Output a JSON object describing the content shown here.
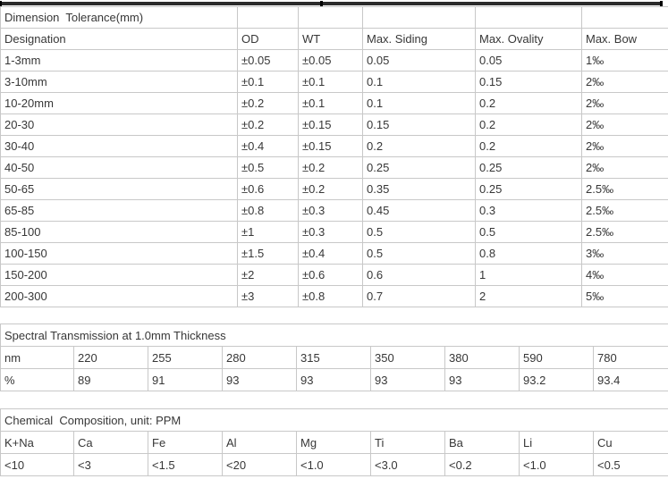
{
  "colors": {
    "border": "#c8c8c8",
    "text": "#373737",
    "top_edge_bar": "#2b2b2b"
  },
  "dimension_table": {
    "title": "Dimension  Tolerance(mm)",
    "columns": [
      "Designation",
      "OD",
      "WT",
      "Max. Siding",
      "Max. Ovality",
      "Max. Bow"
    ],
    "rows": [
      [
        "1-3mm",
        "±0.05",
        "±0.05",
        "0.05",
        "0.05",
        "1‰"
      ],
      [
        "3-10mm",
        "±0.1",
        "±0.1",
        "0.1",
        "0.15",
        "2‰"
      ],
      [
        "10-20mm",
        "±0.2",
        "±0.1",
        "0.1",
        "0.2",
        "2‰"
      ],
      [
        "20-30",
        "±0.2",
        "±0.15",
        "0.15",
        "0.2",
        "2‰"
      ],
      [
        "30-40",
        "±0.4",
        "±0.15",
        "0.2",
        "0.2",
        "2‰"
      ],
      [
        "40-50",
        "±0.5",
        "±0.2",
        "0.25",
        "0.25",
        "2‰"
      ],
      [
        "50-65",
        "±0.6",
        "±0.2",
        "0.35",
        "0.25",
        "2.5‰"
      ],
      [
        "65-85",
        "±0.8",
        "±0.3",
        "0.45",
        "0.3",
        "2.5‰"
      ],
      [
        "85-100",
        "±1",
        "±0.3",
        "0.5",
        "0.5",
        "2.5‰"
      ],
      [
        "100-150",
        "±1.5",
        "±0.4",
        "0.5",
        "0.8",
        "3‰"
      ],
      [
        "150-200",
        "±2",
        "±0.6",
        "0.6",
        "1",
        "4‰"
      ],
      [
        "200-300",
        "±3",
        "±0.8",
        "0.7",
        "2",
        "5‰"
      ]
    ]
  },
  "spectral_table": {
    "title": "Spectral Transmission at 1.0mm Thickness",
    "rows": [
      [
        "nm",
        "220",
        "255",
        "280",
        "315",
        "350",
        "380",
        "590",
        "780"
      ],
      [
        "%",
        "89",
        "91",
        "93",
        "93",
        "93",
        "93",
        "93.2",
        "93.4"
      ]
    ]
  },
  "chemical_table": {
    "title": "Chemical  Composition, unit: PPM",
    "rows": [
      [
        "K+Na",
        "Ca",
        "Fe",
        "Al",
        "Mg",
        "Ti",
        "Ba",
        "Li",
        "Cu"
      ],
      [
        "<10",
        "<3",
        "<1.5",
        "<20",
        "<1.0",
        "<3.0",
        "<0.2",
        "<1.0",
        "<0.5"
      ]
    ]
  }
}
